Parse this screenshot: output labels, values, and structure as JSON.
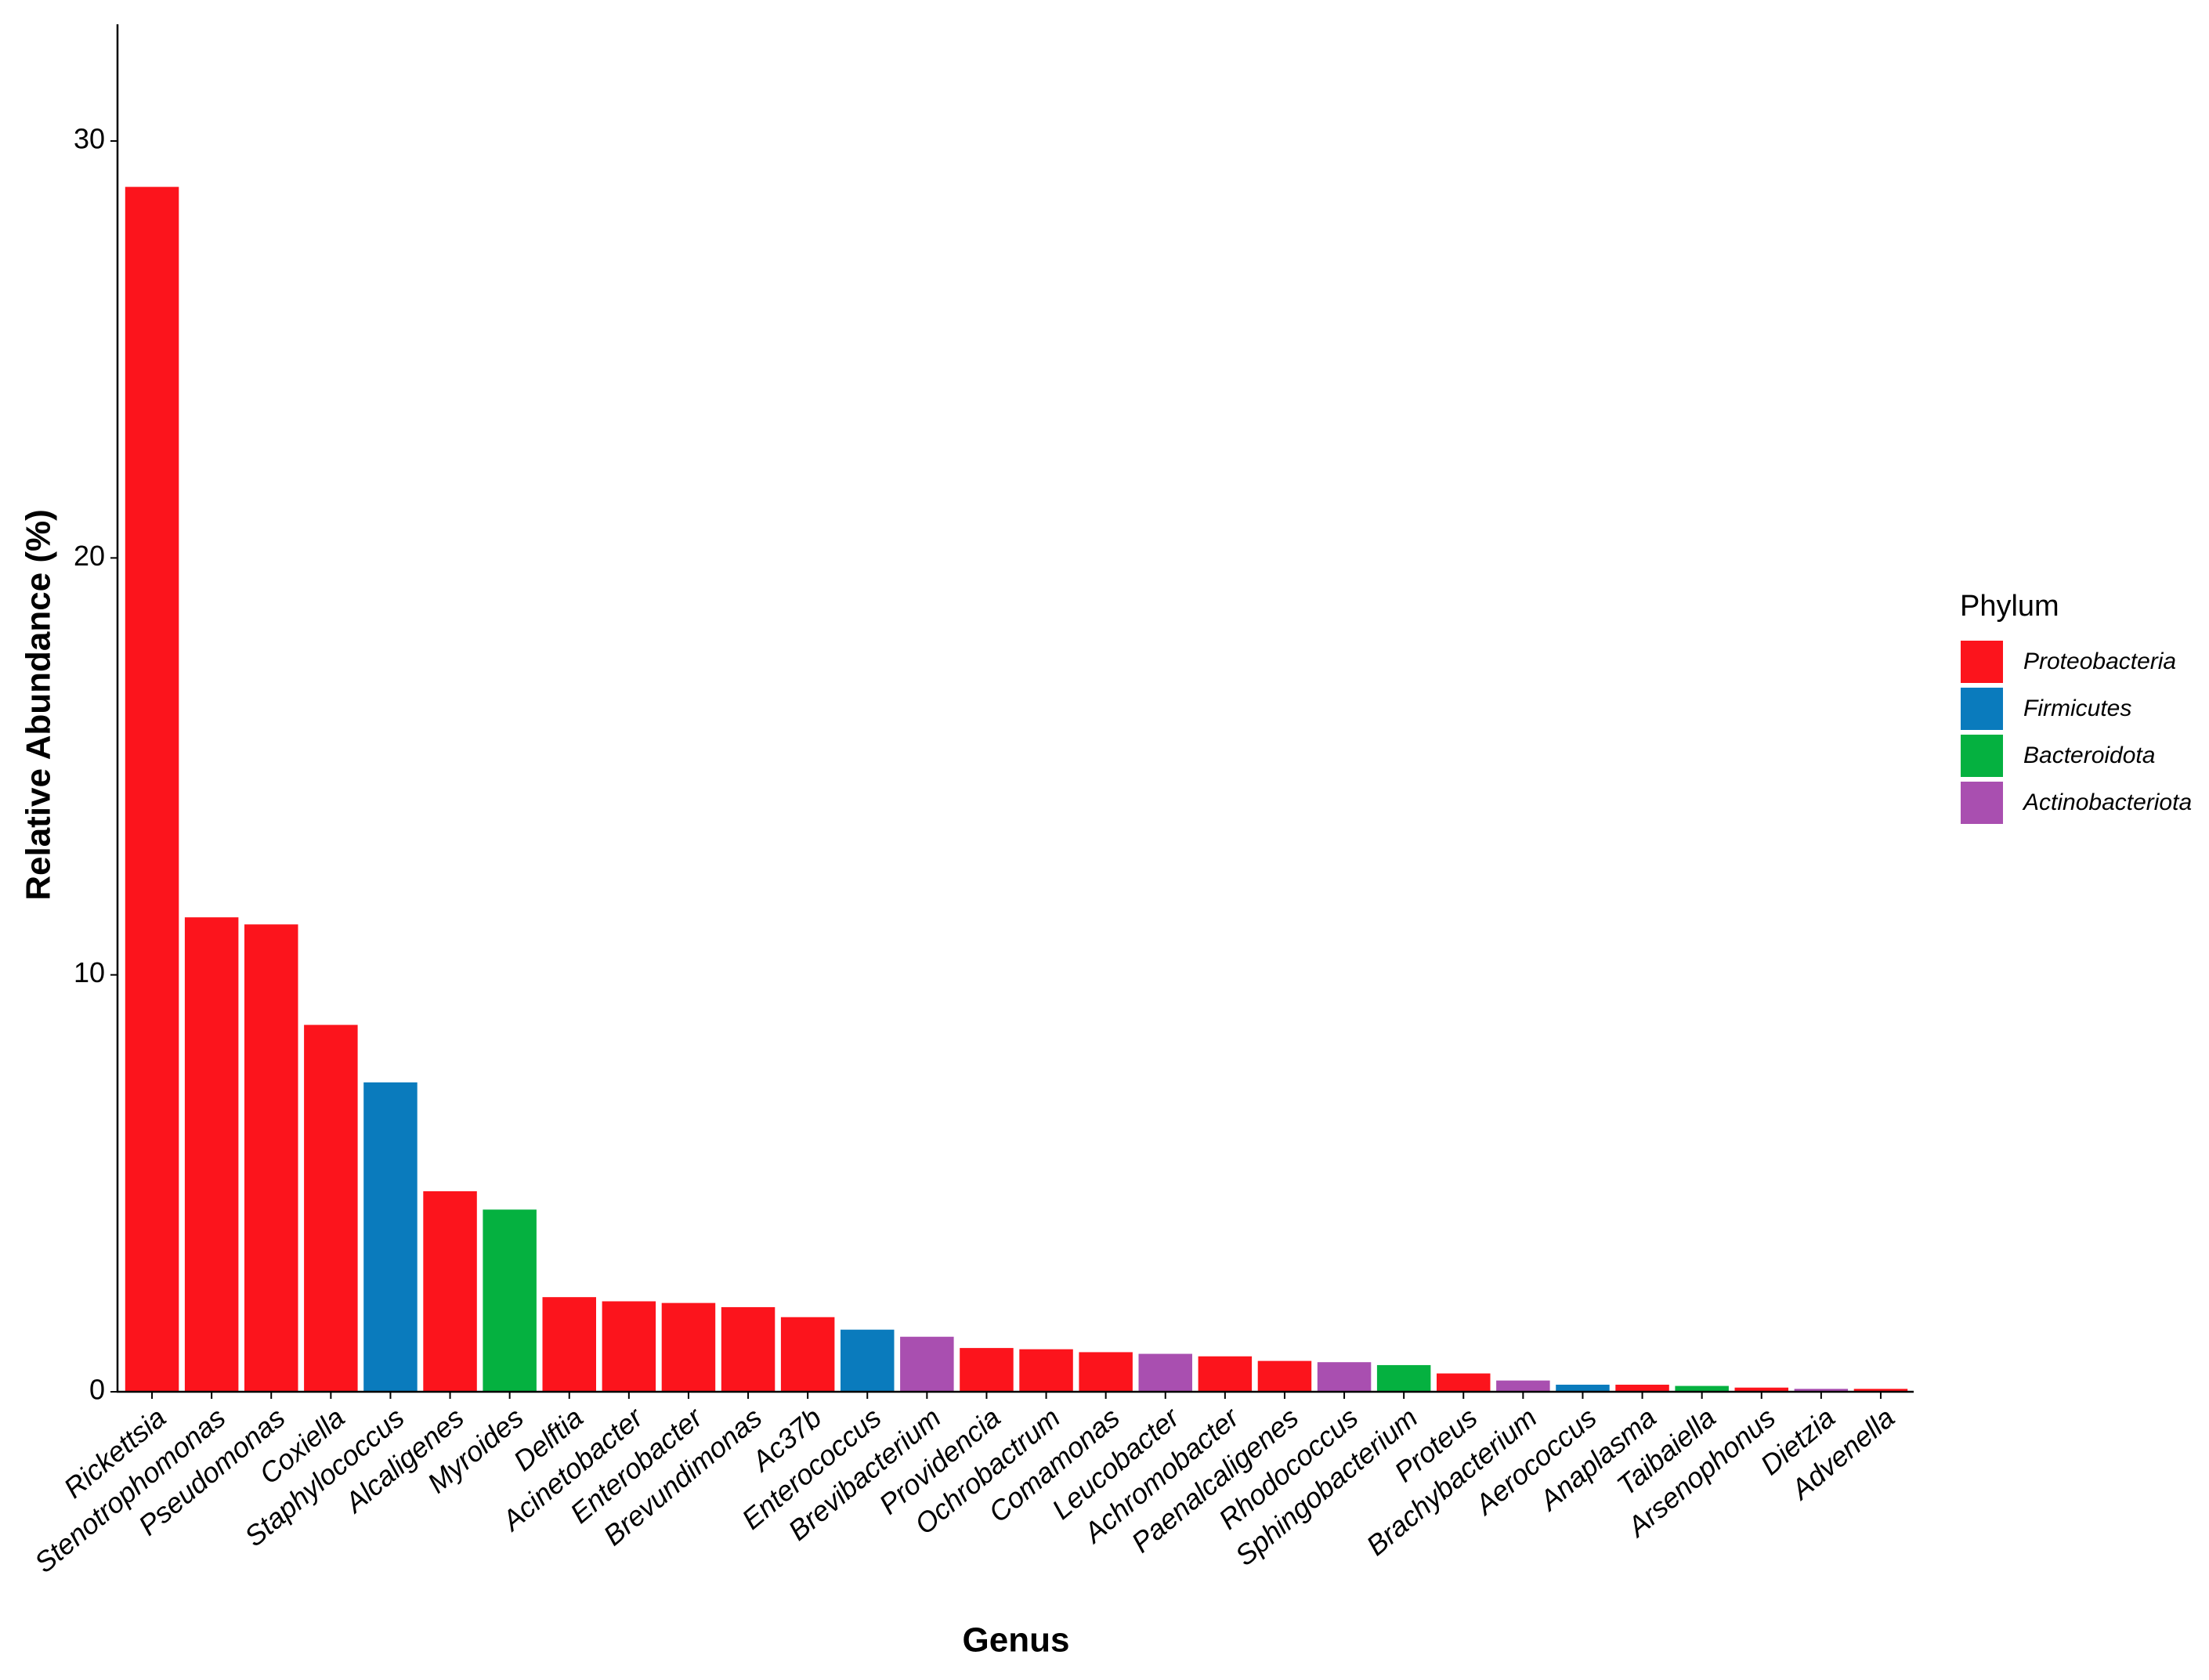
{
  "chart_data": {
    "type": "bar",
    "x_label": "Genus",
    "y_label": "Relative Abundance (%)",
    "legend_title": "Phylum",
    "categories": [
      "Rickettsia",
      "Stenotrophomonas",
      "Pseudomonas",
      "Coxiella",
      "Staphylococcus",
      "Alcaligenes",
      "Myroides",
      "Delftia",
      "Acinetobacter",
      "Enterobacter",
      "Brevundimonas",
      "Ac37b",
      "Enterococcus",
      "Brevibacterium",
      "Providencia",
      "Ochrobactrum",
      "Comamonas",
      "Leucobacter",
      "Achromobacter",
      "Paenalcaligenes",
      "Rhodococcus",
      "Sphingobacterium",
      "Proteus",
      "Brachybacterium",
      "Aerococcus",
      "Anaplasma",
      "Taibaiella",
      "Arsenophonus",
      "Dietzia",
      "Advenella"
    ],
    "series": [
      {
        "name": "Proteobacteria",
        "color": "#fc141c",
        "values": [
          28.9,
          11.38,
          11.21,
          8.8,
          null,
          4.81,
          null,
          2.27,
          2.17,
          2.13,
          2.03,
          1.79,
          null,
          null,
          1.05,
          1.02,
          0.95,
          null,
          0.85,
          0.74,
          null,
          null,
          0.44,
          null,
          null,
          0.17,
          null,
          0.1,
          null,
          0.07
        ]
      },
      {
        "name": "Firmicutes",
        "color": "#0a7bbd",
        "values": [
          null,
          null,
          null,
          null,
          7.42,
          null,
          null,
          null,
          null,
          null,
          null,
          null,
          1.49,
          null,
          null,
          null,
          null,
          null,
          null,
          null,
          null,
          null,
          null,
          null,
          0.17,
          null,
          null,
          null,
          null,
          null
        ]
      },
      {
        "name": "Bacteroidota",
        "color": "#05b140",
        "values": [
          null,
          null,
          null,
          null,
          null,
          null,
          4.37,
          null,
          null,
          null,
          null,
          null,
          null,
          null,
          null,
          null,
          null,
          null,
          null,
          null,
          null,
          0.64,
          null,
          null,
          null,
          null,
          0.14,
          null,
          null,
          null
        ]
      },
      {
        "name": "Actinobacteriota",
        "color": "#a94fb0",
        "values": [
          null,
          null,
          null,
          null,
          null,
          null,
          null,
          null,
          null,
          null,
          null,
          null,
          null,
          1.32,
          null,
          null,
          null,
          0.91,
          null,
          null,
          0.71,
          null,
          null,
          0.27,
          null,
          null,
          null,
          null,
          0.07,
          null
        ]
      }
    ],
    "ylim": [
      0,
      32.8
    ],
    "yticks": [
      0,
      10,
      20,
      30
    ],
    "grid": false
  }
}
